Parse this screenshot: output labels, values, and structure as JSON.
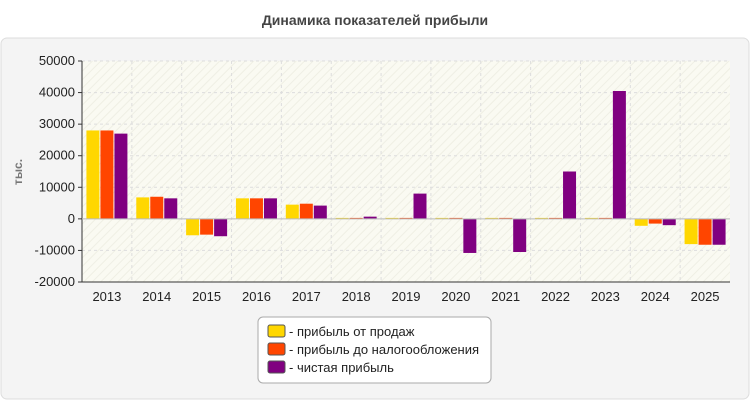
{
  "chart_data": {
    "type": "bar",
    "title": "Динамика показателей прибыли",
    "ylabel": "тыс.",
    "xlabel": "",
    "ylim": [
      -20000,
      50000
    ],
    "yticks": [
      50000,
      40000,
      30000,
      20000,
      10000,
      0,
      -10000,
      -20000
    ],
    "grid": true,
    "legend_position": "bottom-center",
    "categories": [
      "2013",
      "2014",
      "2015",
      "2016",
      "2017",
      "2018",
      "2019",
      "2020",
      "2021",
      "2022",
      "2023",
      "2024",
      "2025"
    ],
    "series": [
      {
        "name": "- прибыль от продаж",
        "color": "#FFD700",
        "values": [
          28000,
          6800,
          -5200,
          6500,
          4500,
          300,
          300,
          300,
          300,
          300,
          300,
          -2200,
          -8000
        ]
      },
      {
        "name": "- прибыль до налогообложения",
        "color": "#FF4500",
        "values": [
          28000,
          7000,
          -5000,
          6500,
          4800,
          300,
          300,
          300,
          300,
          300,
          300,
          -1500,
          -8200
        ]
      },
      {
        "name": "- чистая прибыль",
        "color": "#800080",
        "values": [
          27000,
          6500,
          -5500,
          6500,
          4200,
          700,
          8000,
          -10800,
          -10500,
          15000,
          40500,
          -2000,
          -8200
        ]
      }
    ]
  }
}
